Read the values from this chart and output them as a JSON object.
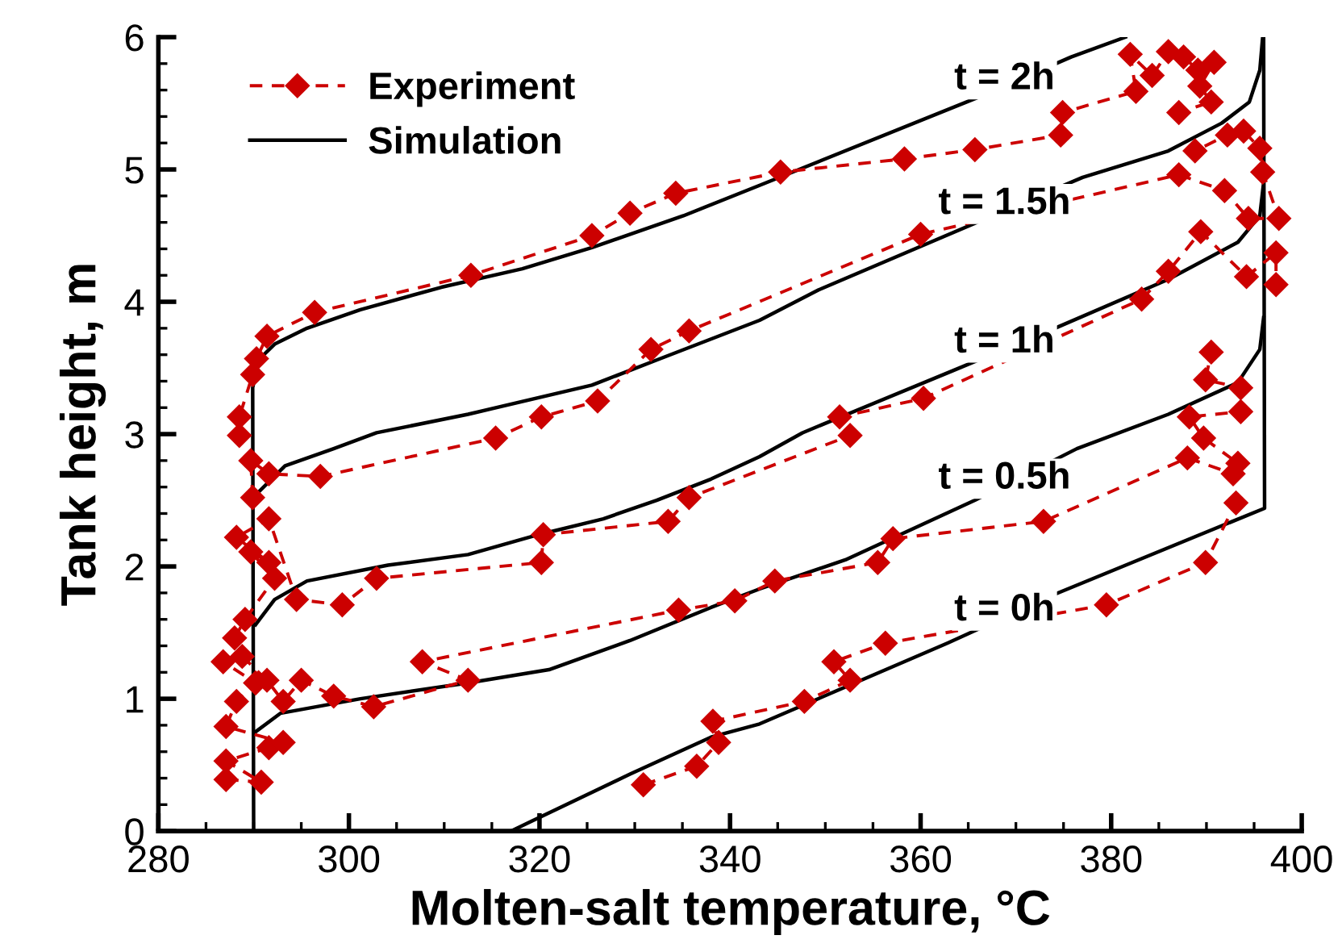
{
  "chart_data": {
    "type": "line",
    "xlabel": "Molten-salt temperature, °C",
    "ylabel": "Tank height, m",
    "xlim": [
      280,
      400
    ],
    "xticks": [
      280,
      300,
      320,
      340,
      360,
      380,
      400
    ],
    "ylim": [
      0,
      6
    ],
    "yticks": [
      0,
      1,
      2,
      3,
      4,
      5,
      6
    ],
    "grid": false,
    "legend": "top left",
    "annotations": [
      "t = 2h",
      "t = 1.5h",
      "t = 1h",
      "t = 0.5h",
      "t = 0h"
    ],
    "series": [
      {
        "name": "Experiment",
        "color": "#cc0000",
        "marker": "diamond",
        "line_style": "dashed",
        "x": [
          288.5,
          288.5,
          289.9,
          290.3,
          291.4,
          296.4,
          312.8,
          325.5,
          329.5,
          334.3,
          345.3,
          358.3,
          365.7,
          374.7,
          374.9,
          382.6,
          382.0,
          384.3,
          386.0,
          387.6,
          389.1,
          390.8,
          389.3,
          390.5,
          387.1
        ],
        "values": [
          2.99,
          3.13,
          3.45,
          3.57,
          3.74,
          3.92,
          4.2,
          4.5,
          4.67,
          4.82,
          4.98,
          5.08,
          5.15,
          5.26,
          5.43,
          5.59,
          5.87,
          5.71,
          5.89,
          5.85,
          5.75,
          5.81,
          5.63,
          5.51,
          5.43
        ]
      },
      {
        "color": "#cc0000",
        "marker": "diamond",
        "line_style": "dashed",
        "x": [
          289.9,
          289.7,
          291.6,
          297.0,
          315.4,
          320.2,
          326.1,
          331.7,
          335.7,
          360.0,
          387.1,
          391.9,
          394.4,
          397.6,
          395.9,
          395.6,
          393.9,
          392.2,
          388.8
        ],
        "values": [
          2.52,
          2.8,
          2.7,
          2.68,
          2.97,
          3.13,
          3.25,
          3.64,
          3.78,
          4.51,
          4.96,
          4.84,
          4.63,
          4.63,
          4.98,
          5.16,
          5.29,
          5.26,
          5.14
        ]
      },
      {
        "color": "#cc0000",
        "marker": "diamond",
        "line_style": "dashed",
        "x": [
          288.0,
          289.1,
          292.2,
          289.7,
          291.6,
          288.2,
          291.6,
          294.5,
          299.3,
          302.9,
          320.2,
          320.4,
          333.5,
          335.7,
          352.6,
          351.5,
          360.3,
          383.2,
          386.0,
          389.4,
          394.2,
          397.3,
          397.3
        ],
        "values": [
          1.46,
          1.6,
          1.91,
          2.11,
          2.03,
          2.22,
          2.36,
          1.75,
          1.71,
          1.91,
          2.03,
          2.24,
          2.34,
          2.52,
          2.99,
          3.13,
          3.27,
          4.02,
          4.23,
          4.53,
          4.19,
          4.37,
          4.13
        ]
      },
      {
        "color": "#cc0000",
        "marker": "diamond",
        "line_style": "dashed",
        "x": [
          287.1,
          290.8,
          287.1,
          291.6,
          293.1,
          287.1,
          288.2,
          290.2,
          286.8,
          288.8,
          291.4,
          293.1,
          295.0,
          298.4,
          302.6,
          312.5,
          307.7,
          334.6,
          340.5,
          344.7,
          355.5,
          357.1,
          372.9,
          388.0,
          392.8,
          393.3,
          389.7,
          388.2,
          393.6,
          393.6,
          389.9,
          390.5
        ],
        "values": [
          0.39,
          0.37,
          0.53,
          0.63,
          0.67,
          0.79,
          0.98,
          1.12,
          1.28,
          1.32,
          1.14,
          0.98,
          1.14,
          1.02,
          0.94,
          1.14,
          1.28,
          1.67,
          1.74,
          1.89,
          2.03,
          2.21,
          2.34,
          2.82,
          2.7,
          2.78,
          2.97,
          3.13,
          3.17,
          3.35,
          3.41,
          3.62
        ]
      },
      {
        "color": "#cc0000",
        "marker": "diamond",
        "line_style": "dashed",
        "x": [
          330.9,
          336.5,
          338.8,
          338.2,
          347.8,
          352.6,
          350.9,
          356.3,
          379.5,
          389.9,
          393.1
        ],
        "values": [
          0.35,
          0.49,
          0.67,
          0.83,
          0.98,
          1.14,
          1.28,
          1.42,
          1.71,
          2.03,
          2.48
        ]
      },
      {
        "name": "Simulation",
        "color": "#000000",
        "marker": "none",
        "line_style": "solid",
        "x": [
          290.0,
          289.9,
          290.5,
          292.2,
          295.6,
          301.2,
          309.7,
          318.2,
          325.5,
          335.1,
          343.1,
          366.2,
          375.8,
          381.5
        ],
        "values": [
          0.0,
          3.35,
          3.56,
          3.68,
          3.8,
          3.94,
          4.11,
          4.25,
          4.41,
          4.65,
          4.88,
          5.55,
          5.85,
          6.0
        ]
      },
      {
        "color": "#000000",
        "marker": "none",
        "line_style": "solid",
        "x": [
          290.2,
          293.3,
          298.4,
          302.9,
          312.5,
          325.5,
          332.3,
          343.1,
          349.3,
          377.0,
          386.0,
          391.6,
          394.5,
          395.6,
          395.9
        ],
        "values": [
          2.54,
          2.76,
          2.89,
          3.01,
          3.15,
          3.37,
          3.56,
          3.86,
          4.09,
          4.94,
          5.14,
          5.35,
          5.51,
          5.75,
          6.0
        ]
      },
      {
        "color": "#000000",
        "marker": "none",
        "line_style": "solid",
        "x": [
          290.2,
          292.2,
          295.6,
          304.1,
          312.5,
          319.9,
          326.7,
          332.3,
          338.0,
          343.1,
          347.6,
          363.4,
          374.1,
          386.0,
          393.3,
          395.6,
          396.0
        ],
        "values": [
          1.56,
          1.75,
          1.89,
          2.01,
          2.09,
          2.24,
          2.36,
          2.5,
          2.66,
          2.83,
          3.01,
          3.48,
          3.8,
          4.17,
          4.45,
          4.65,
          4.9
        ]
      },
      {
        "color": "#000000",
        "marker": "none",
        "line_style": "solid",
        "x": [
          290.2,
          292.8,
          301.2,
          312.5,
          321.0,
          329.5,
          338.0,
          343.1,
          352.1,
          365.7,
          376.4,
          386.0,
          393.3,
          395.6,
          396.0
        ],
        "values": [
          0.75,
          0.89,
          1.0,
          1.12,
          1.22,
          1.44,
          1.69,
          1.83,
          2.05,
          2.5,
          2.89,
          3.15,
          3.39,
          3.64,
          3.88
        ]
      },
      {
        "color": "#000000",
        "marker": "none",
        "line_style": "solid",
        "x": [
          317.0,
          319.9,
          329.5,
          338.0,
          343.1,
          362.8,
          374.1,
          396.1,
          396.0
        ],
        "values": [
          0.0,
          0.1,
          0.43,
          0.71,
          0.81,
          1.42,
          1.79,
          2.44,
          6.0
        ]
      }
    ]
  }
}
